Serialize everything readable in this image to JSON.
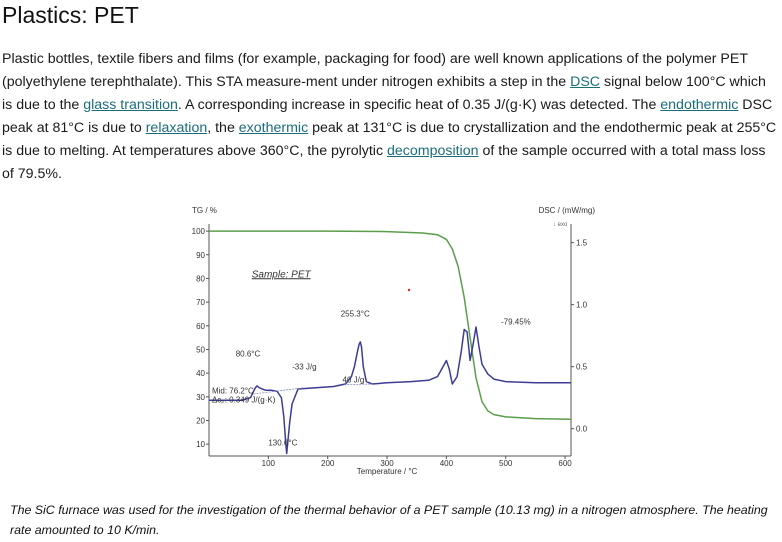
{
  "page": {
    "title": "Plastics: PET",
    "paragraph": [
      {
        "t": "Plastic bottles, textile fibers and films (for example, packaging for food) are well known applications of the polymer PET (polyethylene terephthalate). This STA measure-ment under nitrogen exhibits a step in the "
      },
      {
        "t": "DSC",
        "link": true,
        "name": "dsc-link"
      },
      {
        "t": " signal below 100°C which is due to the "
      },
      {
        "t": "glass transition",
        "link": true,
        "name": "glass-transition-link"
      },
      {
        "t": ". A corresponding increase in specific heat of 0.35 J/(g·K) was detected. The "
      },
      {
        "t": "endothermic",
        "link": true,
        "name": "endothermic-link"
      },
      {
        "t": " DSC peak at 81°C is due to "
      },
      {
        "t": "relaxation",
        "link": true,
        "name": "relaxation-link"
      },
      {
        "t": ", the "
      },
      {
        "t": "exothermic",
        "link": true,
        "name": "exothermic-link"
      },
      {
        "t": " peak at 131°C is due to crystallization and the endothermic peak at 255°C is due to melting. At temperatures above 360°C, the pyrolytic "
      },
      {
        "t": "decomposition",
        "link": true,
        "name": "decomposition-link"
      },
      {
        "t": " of the sample occurred with a total mass loss of 79.5%."
      }
    ],
    "caption": "The SiC furnace was used for the investigation of the thermal behavior of a PET sample (10.13 mg) in a nitrogen atmosphere. The heating rate amounted to 10 K/min.",
    "link_color": "#1a6e7a"
  },
  "chart_data": {
    "type": "line",
    "xlabel": "Temperature / °C",
    "ylabel_left": "TG / %",
    "ylabel_right": "DSC / (mW/mg)",
    "exo_label": "↓ exo",
    "sample_label": "Sample: PET",
    "xlim": [
      0,
      610
    ],
    "ylim_left": [
      5,
      103
    ],
    "ylim_right": [
      -0.22,
      1.65
    ],
    "x_ticks": [
      100,
      200,
      300,
      400,
      500,
      600
    ],
    "y_ticks_left": [
      10,
      20,
      30,
      40,
      50,
      60,
      70,
      80,
      90,
      100
    ],
    "y_ticks_right": [
      0.0,
      0.5,
      1.0,
      1.5
    ],
    "y_tick_labels_right": [
      "0.0",
      "0.5",
      "1.0",
      "1.5"
    ],
    "series": [
      {
        "axis": "left",
        "color": "#5a9e4b",
        "x": [
          0,
          100,
          200,
          300,
          360,
          385,
          400,
          410,
          420,
          430,
          440,
          450,
          460,
          470,
          480,
          500,
          550,
          610
        ],
        "y": [
          100,
          100,
          100,
          99.8,
          99.2,
          98.5,
          96.5,
          92.5,
          85,
          72,
          55,
          38,
          28,
          24,
          22.5,
          21.5,
          20.8,
          20.5
        ]
      },
      {
        "axis": "right",
        "color": "#3c3c96",
        "x": [
          0,
          30,
          55,
          70,
          78,
          81,
          85,
          95,
          105,
          115,
          122,
          126,
          129,
          131,
          133,
          136,
          140,
          150,
          180,
          210,
          230,
          240,
          245,
          250,
          253,
          255,
          257,
          260,
          265,
          275,
          300,
          340,
          370,
          385,
          392,
          400,
          405,
          410,
          418,
          425,
          430,
          435,
          440,
          445,
          450,
          455,
          460,
          470,
          480,
          500,
          550,
          610
        ],
        "y": [
          0.23,
          0.23,
          0.23,
          0.25,
          0.33,
          0.345,
          0.33,
          0.31,
          0.31,
          0.3,
          0.25,
          0.1,
          -0.1,
          -0.2,
          -0.1,
          0.05,
          0.2,
          0.32,
          0.33,
          0.34,
          0.36,
          0.42,
          0.5,
          0.62,
          0.68,
          0.7,
          0.66,
          0.5,
          0.38,
          0.36,
          0.37,
          0.38,
          0.39,
          0.42,
          0.48,
          0.55,
          0.48,
          0.36,
          0.42,
          0.62,
          0.8,
          0.78,
          0.55,
          0.68,
          0.82,
          0.66,
          0.52,
          0.44,
          0.4,
          0.38,
          0.37,
          0.37
        ]
      }
    ],
    "annotations": [
      {
        "text": "80.6°C",
        "x": 45,
        "y_left": 47
      },
      {
        "text": "-33 J/g",
        "x": 140,
        "y_left": 41.5
      },
      {
        "text": "255.3°C",
        "x": 222,
        "y_left": 64
      },
      {
        "text": "40 J/g",
        "x": 225,
        "y_left": 36
      },
      {
        "text": "-79.45%",
        "x": 492,
        "y_left": 60.5
      },
      {
        "text": "130.6°C",
        "x": 100,
        "y_left": 9.5
      },
      {
        "text": "Mid:   76.2°C",
        "x": 5,
        "y_left": 31.5
      },
      {
        "text": "Δcₚ:  0.349 J/(g·K)",
        "x": 5,
        "y_left": 27.5
      }
    ]
  }
}
